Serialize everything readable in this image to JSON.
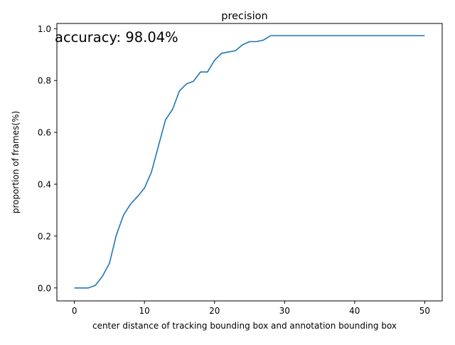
{
  "chart_data": {
    "type": "line",
    "title": "precision",
    "xlabel": "center distance of tracking bounding box and annotation bounding box",
    "ylabel": "proportion of frames(%)",
    "annotation": "accuracy: 98.04%",
    "xlim": [
      -2.5,
      52.5
    ],
    "ylim": [
      -0.05,
      1.02
    ],
    "xticks": [
      0,
      10,
      20,
      30,
      40,
      50
    ],
    "yticks": [
      0.0,
      0.2,
      0.4,
      0.6,
      0.8,
      1.0
    ],
    "xtick_labels": [
      "0",
      "10",
      "20",
      "30",
      "40",
      "50"
    ],
    "ytick_labels": [
      "0.0",
      "0.2",
      "0.4",
      "0.6",
      "0.8",
      "1.0"
    ],
    "grid": false,
    "series": [
      {
        "color": "#1f77b4",
        "x": [
          0,
          1,
          2,
          3,
          4,
          5,
          6,
          7,
          8,
          9,
          10,
          11,
          12,
          13,
          14,
          15,
          16,
          17,
          18,
          19,
          20,
          21,
          22,
          23,
          24,
          25,
          26,
          27,
          28,
          29,
          30,
          31,
          32,
          33,
          34,
          35,
          36,
          37,
          38,
          39,
          40,
          41,
          42,
          43,
          44,
          45,
          46,
          47,
          48,
          49,
          50
        ],
        "y": [
          0.0,
          0.0,
          0.0,
          0.01,
          0.045,
          0.095,
          0.205,
          0.28,
          0.323,
          0.352,
          0.385,
          0.447,
          0.548,
          0.648,
          0.688,
          0.76,
          0.787,
          0.797,
          0.833,
          0.833,
          0.878,
          0.905,
          0.91,
          0.915,
          0.938,
          0.95,
          0.95,
          0.956,
          0.973,
          0.973,
          0.973,
          0.973,
          0.973,
          0.973,
          0.973,
          0.973,
          0.973,
          0.973,
          0.973,
          0.973,
          0.973,
          0.973,
          0.973,
          0.973,
          0.973,
          0.973,
          0.973,
          0.973,
          0.973,
          0.973,
          0.973
        ]
      }
    ]
  }
}
